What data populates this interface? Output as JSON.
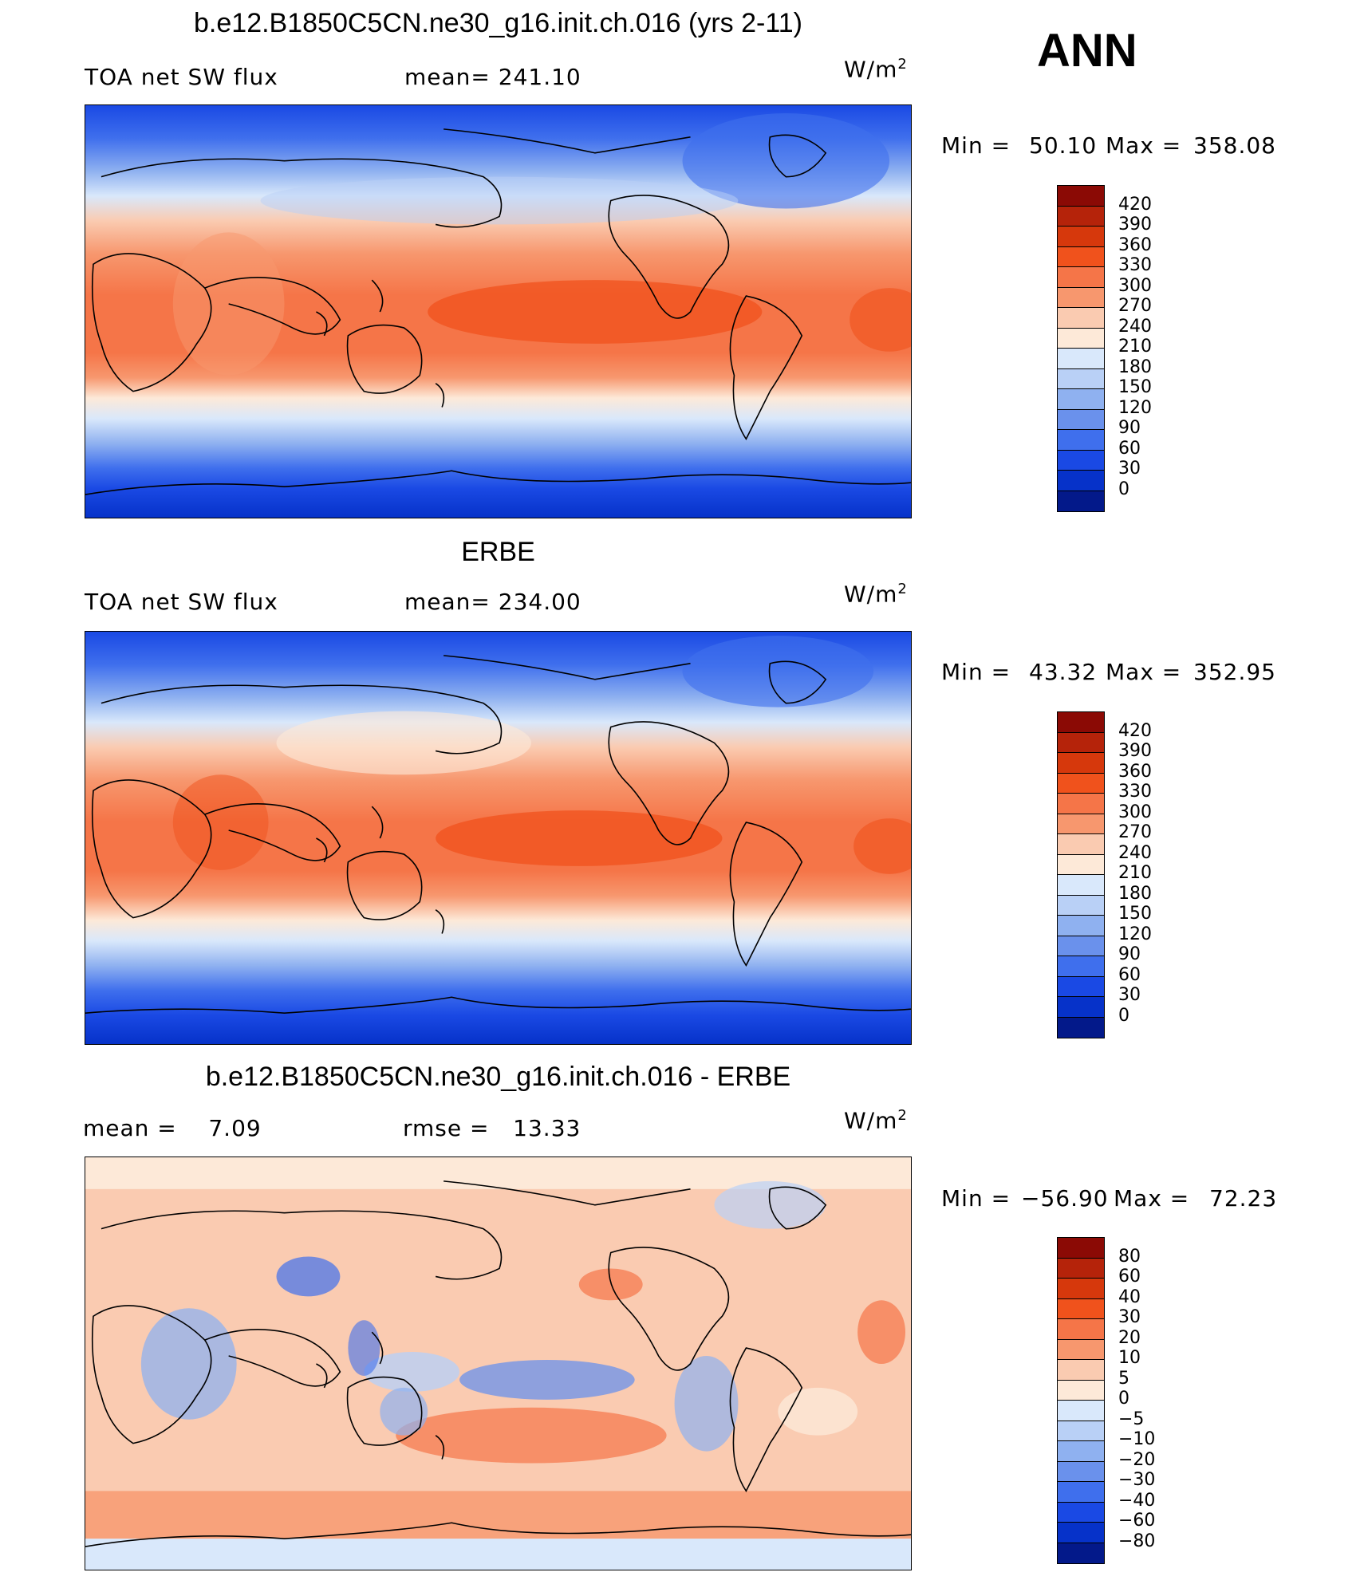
{
  "header": {
    "season": "ANN"
  },
  "units_base": "W/m",
  "units_exp": "2",
  "panels": [
    {
      "title": "b.e12.B1850C5CN.ne30_g16.init.ch.016 (yrs 2-11)",
      "left_label": "TOA net SW flux",
      "center_label": "mean= 241.10",
      "stats": {
        "min_label": "Min =",
        "min": "50.10",
        "max_label": "Max =",
        "max": "358.08"
      },
      "levels": [
        "420",
        "390",
        "360",
        "330",
        "300",
        "270",
        "240",
        "210",
        "180",
        "150",
        "120",
        "90",
        "60",
        "30",
        "0"
      ],
      "colors": [
        "#8b0a05",
        "#b5230a",
        "#d6380c",
        "#f0521c",
        "#f57548",
        "#f7976e",
        "#facbb1",
        "#fde9d8",
        "#d9e8fb",
        "#b9d0f6",
        "#8fb1f0",
        "#6a91ec",
        "#3f6fed",
        "#1a49e4",
        "#0632c9",
        "#03198a"
      ]
    },
    {
      "title": "ERBE",
      "left_label": "TOA net SW flux",
      "center_label": "mean= 234.00",
      "stats": {
        "min_label": "Min =",
        "min": "43.32",
        "max_label": "Max =",
        "max": "352.95"
      },
      "levels": [
        "420",
        "390",
        "360",
        "330",
        "300",
        "270",
        "240",
        "210",
        "180",
        "150",
        "120",
        "90",
        "60",
        "30",
        "0"
      ],
      "colors": [
        "#8b0a05",
        "#b5230a",
        "#d6380c",
        "#f0521c",
        "#f57548",
        "#f7976e",
        "#facbb1",
        "#fde9d8",
        "#d9e8fb",
        "#b9d0f6",
        "#8fb1f0",
        "#6a91ec",
        "#3f6fed",
        "#1a49e4",
        "#0632c9",
        "#03198a"
      ]
    },
    {
      "title": "b.e12.B1850C5CN.ne30_g16.init.ch.016 - ERBE",
      "left_label": "mean =    7.09",
      "center_label": "rmse =   13.33",
      "stats": {
        "min_label": "Min =",
        "min": "−56.90",
        "max_label": "Max =",
        "max": "72.23"
      },
      "levels": [
        "80",
        "60",
        "40",
        "30",
        "20",
        "10",
        "5",
        "0",
        "−5",
        "−10",
        "−20",
        "−30",
        "−40",
        "−60",
        "−80"
      ],
      "colors": [
        "#8b0a05",
        "#b5230a",
        "#d6380c",
        "#f0521c",
        "#f57548",
        "#f7976e",
        "#facbb1",
        "#fde9d8",
        "#d9e8fb",
        "#b9d0f6",
        "#8fb1f0",
        "#6a91ec",
        "#3f6fed",
        "#1a49e4",
        "#0632c9",
        "#03198a"
      ]
    }
  ]
}
